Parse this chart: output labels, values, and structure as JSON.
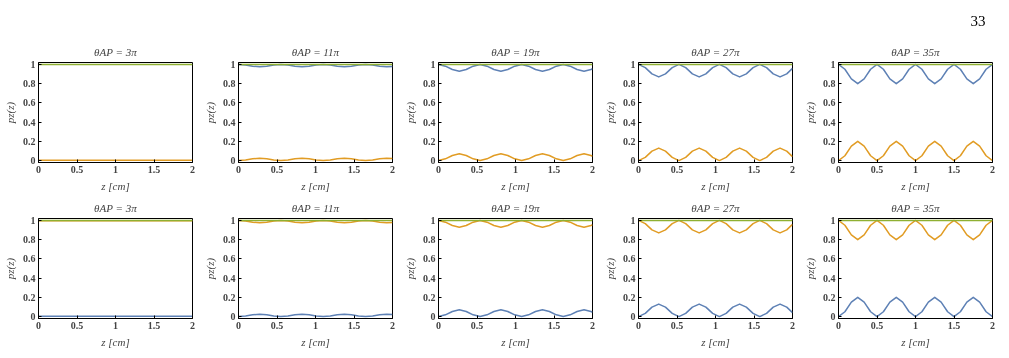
{
  "chart_data": [
    {
      "type": "other",
      "annotations": [
        "33"
      ]
    },
    {
      "type": "line",
      "title": "θAP = 3π",
      "xlabel": "z [cm]",
      "ylabel": "pz(z)",
      "xlim": [
        0,
        2
      ],
      "ylim": [
        -0.02,
        1.02
      ],
      "xticks": [
        0,
        0.5,
        1,
        1.5,
        2
      ],
      "yticks": [
        0,
        0.2,
        0.4,
        0.6,
        0.8,
        1
      ],
      "x": [
        0,
        1,
        2
      ],
      "series": [
        {
          "color": "#e19c24",
          "values": [
            0.004,
            0.004,
            0.004
          ]
        },
        {
          "color": "#8fb032",
          "values": [
            1,
            1,
            1
          ]
        }
      ]
    },
    {
      "type": "line",
      "title": "θAP = 11π",
      "xlabel": "z [cm]",
      "ylabel": "pz(z)",
      "xlim": [
        0,
        2
      ],
      "ylim": [
        -0.02,
        1.02
      ],
      "xticks": [
        0,
        0.5,
        1,
        1.5,
        2
      ],
      "yticks": [
        0,
        0.2,
        0.4,
        0.6,
        0.8,
        1
      ],
      "x": [
        0,
        0.092,
        0.183,
        0.275,
        0.367,
        0.458,
        0.55,
        0.642,
        0.733,
        0.825,
        0.917,
        1.008,
        1.1,
        1.192,
        1.283,
        1.375,
        1.467,
        1.558,
        1.65,
        1.742,
        1.833,
        1.925,
        2
      ],
      "series": [
        {
          "color": "#5e81b5",
          "values": [
            1,
            0.994,
            0.981,
            0.975,
            0.981,
            0.994,
            1,
            0.994,
            0.981,
            0.975,
            0.981,
            0.994,
            1,
            0.994,
            0.981,
            0.975,
            0.981,
            0.994,
            1,
            0.994,
            0.981,
            0.975,
            0.979
          ]
        },
        {
          "color": "#e19c24",
          "values": [
            0,
            0.006,
            0.019,
            0.025,
            0.019,
            0.006,
            0,
            0.006,
            0.019,
            0.025,
            0.019,
            0.006,
            0,
            0.006,
            0.019,
            0.025,
            0.019,
            0.006,
            0,
            0.006,
            0.019,
            0.025,
            0.021
          ]
        },
        {
          "color": "#8fb032",
          "values": [
            1,
            1,
            1,
            1,
            1,
            1,
            1,
            1,
            1,
            1,
            1,
            1,
            1,
            1,
            1,
            1,
            1,
            1,
            1,
            1,
            1,
            1,
            1
          ]
        }
      ]
    },
    {
      "type": "line",
      "title": "θAP = 19π",
      "xlabel": "z [cm]",
      "ylabel": "pz(z)",
      "xlim": [
        0,
        2
      ],
      "ylim": [
        -0.02,
        1.02
      ],
      "xticks": [
        0,
        0.5,
        1,
        1.5,
        2
      ],
      "yticks": [
        0,
        0.2,
        0.4,
        0.6,
        0.8,
        1
      ],
      "x": [
        0,
        0.09,
        0.18,
        0.27,
        0.36,
        0.45,
        0.54,
        0.63,
        0.72,
        0.81,
        0.9,
        0.99,
        1.08,
        1.17,
        1.26,
        1.35,
        1.44,
        1.53,
        1.62,
        1.71,
        1.8,
        1.89,
        1.98,
        2
      ],
      "series": [
        {
          "color": "#5e81b5",
          "values": [
            1,
            0.982,
            0.947,
            0.93,
            0.947,
            0.982,
            1,
            0.982,
            0.947,
            0.93,
            0.947,
            0.982,
            1,
            0.982,
            0.947,
            0.93,
            0.947,
            0.982,
            1,
            0.982,
            0.947,
            0.93,
            0.947,
            0.955
          ]
        },
        {
          "color": "#e19c24",
          "values": [
            0,
            0.018,
            0.053,
            0.07,
            0.053,
            0.018,
            0,
            0.018,
            0.053,
            0.07,
            0.053,
            0.018,
            0,
            0.018,
            0.053,
            0.07,
            0.053,
            0.018,
            0,
            0.018,
            0.053,
            0.07,
            0.053,
            0.045
          ]
        },
        {
          "color": "#8fb032",
          "values": [
            1,
            1,
            1,
            1,
            1,
            1,
            1,
            1,
            1,
            1,
            1,
            1,
            1,
            1,
            1,
            1,
            1,
            1,
            1,
            1,
            1,
            1,
            1,
            1
          ]
        }
      ]
    },
    {
      "type": "line",
      "title": "θAP = 27π",
      "xlabel": "z [cm]",
      "ylabel": "pz(z)",
      "xlim": [
        0,
        2
      ],
      "ylim": [
        -0.02,
        1.02
      ],
      "xticks": [
        0,
        0.5,
        1,
        1.5,
        2
      ],
      "yticks": [
        0,
        0.2,
        0.4,
        0.6,
        0.8,
        1
      ],
      "x": [
        0,
        0.088,
        0.175,
        0.263,
        0.35,
        0.438,
        0.525,
        0.613,
        0.7,
        0.788,
        0.875,
        0.963,
        1.05,
        1.138,
        1.225,
        1.313,
        1.4,
        1.488,
        1.575,
        1.663,
        1.75,
        1.838,
        1.925,
        2
      ],
      "series": [
        {
          "color": "#5e81b5",
          "values": [
            1,
            0.967,
            0.902,
            0.87,
            0.902,
            0.967,
            1,
            0.967,
            0.902,
            0.87,
            0.902,
            0.967,
            1,
            0.967,
            0.902,
            0.87,
            0.902,
            0.967,
            1,
            0.967,
            0.902,
            0.87,
            0.902,
            0.959
          ]
        },
        {
          "color": "#e19c24",
          "values": [
            0,
            0.033,
            0.098,
            0.13,
            0.098,
            0.033,
            0,
            0.033,
            0.098,
            0.13,
            0.098,
            0.033,
            0,
            0.033,
            0.098,
            0.13,
            0.098,
            0.033,
            0,
            0.033,
            0.098,
            0.13,
            0.098,
            0.041
          ]
        },
        {
          "color": "#8fb032",
          "values": [
            1,
            1,
            1,
            1,
            1,
            1,
            1,
            1,
            1,
            1,
            1,
            1,
            1,
            1,
            1,
            1,
            1,
            1,
            1,
            1,
            1,
            1,
            1,
            1
          ]
        }
      ]
    },
    {
      "type": "line",
      "title": "θAP = 35π",
      "xlabel": "z [cm]",
      "ylabel": "pz(z)",
      "xlim": [
        0,
        2
      ],
      "ylim": [
        -0.02,
        1.02
      ],
      "xticks": [
        0,
        0.5,
        1,
        1.5,
        2
      ],
      "yticks": [
        0,
        0.2,
        0.4,
        0.6,
        0.8,
        1
      ],
      "x": [
        0,
        0.083,
        0.167,
        0.25,
        0.333,
        0.417,
        0.5,
        0.583,
        0.667,
        0.75,
        0.833,
        0.917,
        1,
        1.083,
        1.167,
        1.25,
        1.333,
        1.417,
        1.5,
        1.583,
        1.667,
        1.75,
        1.833,
        1.917,
        2
      ],
      "series": [
        {
          "color": "#5e81b5",
          "values": [
            1,
            0.95,
            0.85,
            0.8,
            0.85,
            0.95,
            1,
            0.95,
            0.85,
            0.8,
            0.85,
            0.95,
            1,
            0.95,
            0.85,
            0.8,
            0.85,
            0.95,
            1,
            0.95,
            0.85,
            0.8,
            0.85,
            0.95,
            1
          ]
        },
        {
          "color": "#e19c24",
          "values": [
            0,
            0.05,
            0.15,
            0.2,
            0.15,
            0.05,
            0,
            0.05,
            0.15,
            0.2,
            0.15,
            0.05,
            0,
            0.05,
            0.15,
            0.2,
            0.15,
            0.05,
            0,
            0.05,
            0.15,
            0.2,
            0.15,
            0.05,
            0
          ]
        },
        {
          "color": "#8fb032",
          "values": [
            1,
            1,
            1,
            1,
            1,
            1,
            1,
            1,
            1,
            1,
            1,
            1,
            1,
            1,
            1,
            1,
            1,
            1,
            1,
            1,
            1,
            1,
            1,
            1,
            1
          ]
        }
      ]
    },
    {
      "type": "line",
      "title": "θAP = 3π",
      "xlabel": "z [cm]",
      "ylabel": "pz(z)",
      "xlim": [
        0,
        2
      ],
      "ylim": [
        -0.02,
        1.02
      ],
      "xticks": [
        0,
        0.5,
        1,
        1.5,
        2
      ],
      "yticks": [
        0,
        0.2,
        0.4,
        0.6,
        0.8,
        1
      ],
      "x": [
        0,
        1,
        2
      ],
      "series": [
        {
          "color": "#5e81b5",
          "values": [
            0.004,
            0.004,
            0.004
          ]
        },
        {
          "color": "#e19c24",
          "values": [
            0.996,
            0.996,
            0.996
          ]
        },
        {
          "color": "#8fb032",
          "values": [
            1,
            1,
            1
          ]
        }
      ]
    },
    {
      "type": "line",
      "title": "θAP = 11π",
      "xlabel": "z [cm]",
      "ylabel": "pz(z)",
      "xlim": [
        0,
        2
      ],
      "ylim": [
        -0.02,
        1.02
      ],
      "xticks": [
        0,
        0.5,
        1,
        1.5,
        2
      ],
      "yticks": [
        0,
        0.2,
        0.4,
        0.6,
        0.8,
        1
      ],
      "x": [
        0,
        0.092,
        0.183,
        0.275,
        0.367,
        0.458,
        0.55,
        0.642,
        0.733,
        0.825,
        0.917,
        1.008,
        1.1,
        1.192,
        1.283,
        1.375,
        1.467,
        1.558,
        1.65,
        1.742,
        1.833,
        1.925,
        2
      ],
      "series": [
        {
          "color": "#5e81b5",
          "values": [
            0,
            0.006,
            0.019,
            0.025,
            0.019,
            0.006,
            0,
            0.006,
            0.019,
            0.025,
            0.019,
            0.006,
            0,
            0.006,
            0.019,
            0.025,
            0.019,
            0.006,
            0,
            0.006,
            0.019,
            0.025,
            0.021
          ]
        },
        {
          "color": "#e19c24",
          "values": [
            1,
            0.994,
            0.981,
            0.975,
            0.981,
            0.994,
            1,
            0.994,
            0.981,
            0.975,
            0.981,
            0.994,
            1,
            0.994,
            0.981,
            0.975,
            0.981,
            0.994,
            1,
            0.994,
            0.981,
            0.975,
            0.979
          ]
        },
        {
          "color": "#8fb032",
          "values": [
            1,
            1,
            1,
            1,
            1,
            1,
            1,
            1,
            1,
            1,
            1,
            1,
            1,
            1,
            1,
            1,
            1,
            1,
            1,
            1,
            1,
            1,
            1
          ]
        }
      ]
    },
    {
      "type": "line",
      "title": "θAP = 19π",
      "xlabel": "z [cm]",
      "ylabel": "pz(z)",
      "xlim": [
        0,
        2
      ],
      "ylim": [
        -0.02,
        1.02
      ],
      "xticks": [
        0,
        0.5,
        1,
        1.5,
        2
      ],
      "yticks": [
        0,
        0.2,
        0.4,
        0.6,
        0.8,
        1
      ],
      "x": [
        0,
        0.09,
        0.18,
        0.27,
        0.36,
        0.45,
        0.54,
        0.63,
        0.72,
        0.81,
        0.9,
        0.99,
        1.08,
        1.17,
        1.26,
        1.35,
        1.44,
        1.53,
        1.62,
        1.71,
        1.8,
        1.89,
        1.98,
        2
      ],
      "series": [
        {
          "color": "#5e81b5",
          "values": [
            0,
            0.018,
            0.053,
            0.07,
            0.053,
            0.018,
            0,
            0.018,
            0.053,
            0.07,
            0.053,
            0.018,
            0,
            0.018,
            0.053,
            0.07,
            0.053,
            0.018,
            0,
            0.018,
            0.053,
            0.07,
            0.053,
            0.045
          ]
        },
        {
          "color": "#e19c24",
          "values": [
            1,
            0.982,
            0.947,
            0.93,
            0.947,
            0.982,
            1,
            0.982,
            0.947,
            0.93,
            0.947,
            0.982,
            1,
            0.982,
            0.947,
            0.93,
            0.947,
            0.982,
            1,
            0.982,
            0.947,
            0.93,
            0.947,
            0.955
          ]
        },
        {
          "color": "#8fb032",
          "values": [
            1,
            1,
            1,
            1,
            1,
            1,
            1,
            1,
            1,
            1,
            1,
            1,
            1,
            1,
            1,
            1,
            1,
            1,
            1,
            1,
            1,
            1,
            1,
            1
          ]
        }
      ]
    },
    {
      "type": "line",
      "title": "θAP = 27π",
      "xlabel": "z [cm]",
      "ylabel": "pz(z)",
      "xlim": [
        0,
        2
      ],
      "ylim": [
        -0.02,
        1.02
      ],
      "xticks": [
        0,
        0.5,
        1,
        1.5,
        2
      ],
      "yticks": [
        0,
        0.2,
        0.4,
        0.6,
        0.8,
        1
      ],
      "x": [
        0,
        0.088,
        0.175,
        0.263,
        0.35,
        0.438,
        0.525,
        0.613,
        0.7,
        0.788,
        0.875,
        0.963,
        1.05,
        1.138,
        1.225,
        1.313,
        1.4,
        1.488,
        1.575,
        1.663,
        1.75,
        1.838,
        1.925,
        2
      ],
      "series": [
        {
          "color": "#5e81b5",
          "values": [
            0,
            0.033,
            0.098,
            0.13,
            0.098,
            0.033,
            0,
            0.033,
            0.098,
            0.13,
            0.098,
            0.033,
            0,
            0.033,
            0.098,
            0.13,
            0.098,
            0.033,
            0,
            0.033,
            0.098,
            0.13,
            0.098,
            0.041
          ]
        },
        {
          "color": "#e19c24",
          "values": [
            1,
            0.967,
            0.902,
            0.87,
            0.902,
            0.967,
            1,
            0.967,
            0.902,
            0.87,
            0.902,
            0.967,
            1,
            0.967,
            0.902,
            0.87,
            0.902,
            0.967,
            1,
            0.967,
            0.902,
            0.87,
            0.902,
            0.959
          ]
        },
        {
          "color": "#8fb032",
          "values": [
            1,
            1,
            1,
            1,
            1,
            1,
            1,
            1,
            1,
            1,
            1,
            1,
            1,
            1,
            1,
            1,
            1,
            1,
            1,
            1,
            1,
            1,
            1,
            1
          ]
        }
      ]
    },
    {
      "type": "line",
      "title": "θAP = 35π",
      "xlabel": "z [cm]",
      "ylabel": "pz(z)",
      "xlim": [
        0,
        2
      ],
      "ylim": [
        -0.02,
        1.02
      ],
      "xticks": [
        0,
        0.5,
        1,
        1.5,
        2
      ],
      "yticks": [
        0,
        0.2,
        0.4,
        0.6,
        0.8,
        1
      ],
      "x": [
        0,
        0.083,
        0.167,
        0.25,
        0.333,
        0.417,
        0.5,
        0.583,
        0.667,
        0.75,
        0.833,
        0.917,
        1,
        1.083,
        1.167,
        1.25,
        1.333,
        1.417,
        1.5,
        1.583,
        1.667,
        1.75,
        1.833,
        1.917,
        2
      ],
      "series": [
        {
          "color": "#5e81b5",
          "values": [
            0,
            0.05,
            0.15,
            0.2,
            0.15,
            0.05,
            0,
            0.05,
            0.15,
            0.2,
            0.15,
            0.05,
            0,
            0.05,
            0.15,
            0.2,
            0.15,
            0.05,
            0,
            0.05,
            0.15,
            0.2,
            0.15,
            0.05,
            0
          ]
        },
        {
          "color": "#e19c24",
          "values": [
            1,
            0.95,
            0.85,
            0.8,
            0.85,
            0.95,
            1,
            0.95,
            0.85,
            0.8,
            0.85,
            0.95,
            1,
            0.95,
            0.85,
            0.8,
            0.85,
            0.95,
            1,
            0.95,
            0.85,
            0.8,
            0.85,
            0.95,
            1
          ]
        },
        {
          "color": "#8fb032",
          "values": [
            1,
            1,
            1,
            1,
            1,
            1,
            1,
            1,
            1,
            1,
            1,
            1,
            1,
            1,
            1,
            1,
            1,
            1,
            1,
            1,
            1,
            1,
            1,
            1,
            1
          ]
        }
      ]
    }
  ]
}
